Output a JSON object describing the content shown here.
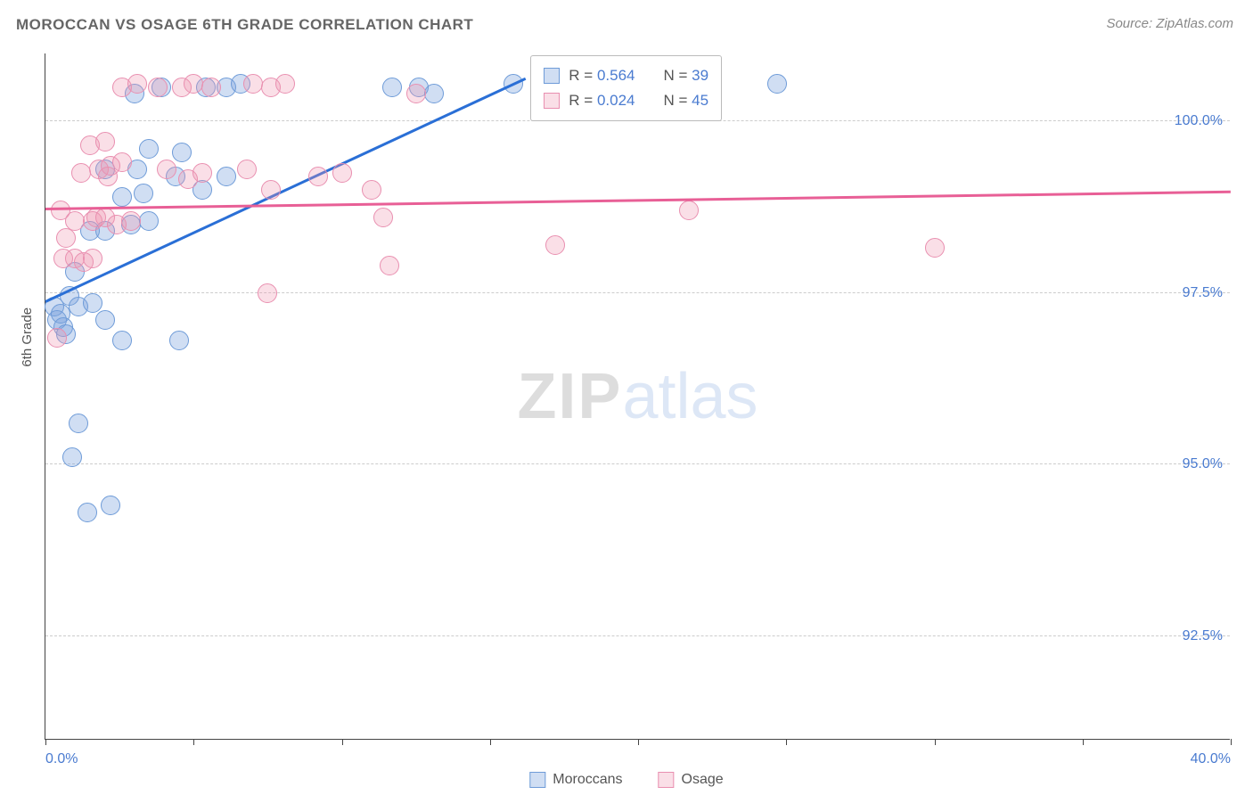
{
  "title": "MOROCCAN VS OSAGE 6TH GRADE CORRELATION CHART",
  "source": "Source: ZipAtlas.com",
  "y_axis_title": "6th Grade",
  "watermark": {
    "bold": "ZIP",
    "light": "atlas"
  },
  "chart": {
    "type": "scatter",
    "xlim": [
      0,
      40
    ],
    "ylim": [
      91,
      101
    ],
    "x_ticks": [
      0,
      5,
      10,
      15,
      20,
      25,
      30,
      35,
      40
    ],
    "x_tick_labels": {
      "0": "0.0%",
      "40": "40.0%"
    },
    "y_grid": [
      92.5,
      95.0,
      97.5,
      100.0
    ],
    "y_grid_labels": [
      "92.5%",
      "95.0%",
      "97.5%",
      "100.0%"
    ],
    "grid_color": "#cccccc",
    "axis_color": "#444444",
    "label_color": "#4a7bd0",
    "background": "#ffffff",
    "marker_radius": 11,
    "marker_stroke": 1.5,
    "series": [
      {
        "name": "Moroccans",
        "fill": "rgba(120,160,220,0.35)",
        "stroke": "#6e9bd8",
        "trend_color": "#2a6fd6",
        "R": "0.564",
        "N": "39",
        "trend": {
          "x1": 0,
          "y1": 97.35,
          "x2": 16.2,
          "y2": 100.6
        },
        "points": [
          [
            0.3,
            97.3
          ],
          [
            0.4,
            97.1
          ],
          [
            0.5,
            97.2
          ],
          [
            0.6,
            97.0
          ],
          [
            0.7,
            96.9
          ],
          [
            1.4,
            94.3
          ],
          [
            2.2,
            94.4
          ],
          [
            1.1,
            95.6
          ],
          [
            0.9,
            95.1
          ],
          [
            0.8,
            97.45
          ],
          [
            1.1,
            97.3
          ],
          [
            1.6,
            97.35
          ],
          [
            1.0,
            97.8
          ],
          [
            2.6,
            96.8
          ],
          [
            2.0,
            97.1
          ],
          [
            4.5,
            96.8
          ],
          [
            1.5,
            98.4
          ],
          [
            2.0,
            98.4
          ],
          [
            2.9,
            98.5
          ],
          [
            3.5,
            98.55
          ],
          [
            2.6,
            98.9
          ],
          [
            3.3,
            98.95
          ],
          [
            2.0,
            99.3
          ],
          [
            3.1,
            99.3
          ],
          [
            3.0,
            100.4
          ],
          [
            3.9,
            100.5
          ],
          [
            4.4,
            99.2
          ],
          [
            3.5,
            99.6
          ],
          [
            5.3,
            99.0
          ],
          [
            6.1,
            99.2
          ],
          [
            5.4,
            100.5
          ],
          [
            6.1,
            100.5
          ],
          [
            6.6,
            100.55
          ],
          [
            4.6,
            99.55
          ],
          [
            11.7,
            100.5
          ],
          [
            12.6,
            100.5
          ],
          [
            13.1,
            100.4
          ],
          [
            15.8,
            100.55
          ],
          [
            24.7,
            100.55
          ]
        ]
      },
      {
        "name": "Osage",
        "fill": "rgba(240,150,175,0.30)",
        "stroke": "#e98fb0",
        "trend_color": "#e85f96",
        "R": "0.024",
        "N": "45",
        "trend": {
          "x1": 0,
          "y1": 98.7,
          "x2": 40,
          "y2": 98.95
        },
        "points": [
          [
            0.4,
            96.85
          ],
          [
            0.6,
            98.0
          ],
          [
            0.7,
            98.3
          ],
          [
            0.5,
            98.7
          ],
          [
            1.0,
            98.55
          ],
          [
            1.0,
            98.0
          ],
          [
            1.3,
            97.95
          ],
          [
            1.6,
            98.0
          ],
          [
            1.6,
            98.55
          ],
          [
            1.7,
            98.6
          ],
          [
            2.0,
            98.6
          ],
          [
            2.4,
            98.5
          ],
          [
            2.9,
            98.55
          ],
          [
            1.2,
            99.25
          ],
          [
            1.8,
            99.3
          ],
          [
            2.1,
            99.2
          ],
          [
            2.2,
            99.35
          ],
          [
            2.6,
            99.4
          ],
          [
            1.5,
            99.65
          ],
          [
            2.0,
            99.7
          ],
          [
            2.6,
            100.5
          ],
          [
            3.1,
            100.55
          ],
          [
            3.8,
            100.5
          ],
          [
            4.6,
            100.5
          ],
          [
            5.0,
            100.55
          ],
          [
            5.6,
            100.5
          ],
          [
            7.0,
            100.55
          ],
          [
            7.6,
            100.5
          ],
          [
            8.1,
            100.55
          ],
          [
            4.1,
            99.3
          ],
          [
            4.8,
            99.15
          ],
          [
            5.3,
            99.25
          ],
          [
            6.8,
            99.3
          ],
          [
            7.6,
            99.0
          ],
          [
            9.2,
            99.2
          ],
          [
            10.0,
            99.25
          ],
          [
            11.0,
            99.0
          ],
          [
            11.4,
            98.6
          ],
          [
            11.6,
            97.9
          ],
          [
            7.5,
            97.5
          ],
          [
            12.5,
            100.4
          ],
          [
            16.9,
            100.5
          ],
          [
            17.2,
            98.2
          ],
          [
            21.7,
            98.7
          ],
          [
            30.0,
            98.15
          ]
        ]
      }
    ]
  },
  "legend_box": {
    "R_label": "R =",
    "N_label": "N ="
  },
  "bottom_legend": [
    "Moroccans",
    "Osage"
  ]
}
